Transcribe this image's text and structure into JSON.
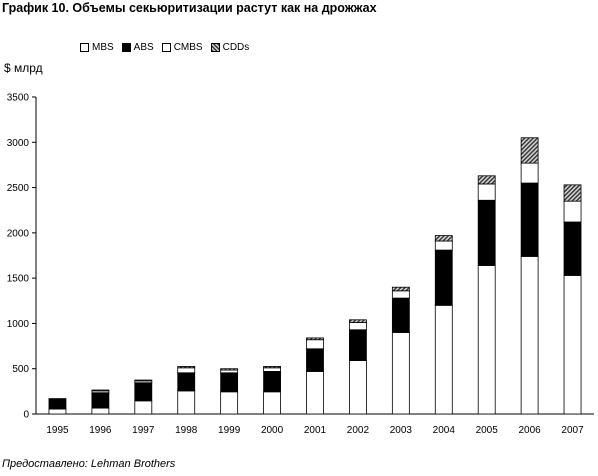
{
  "title": "График 10. Объемы секьюритизации растут как на дрожжах",
  "source": "Предоставлено: Lehman Brothers",
  "chart_data": {
    "type": "bar",
    "stacked": true,
    "ylabel": "$ млрд",
    "ylim": [
      0,
      3500
    ],
    "yticks": [
      0,
      500,
      1000,
      1500,
      2000,
      2500,
      3000,
      3500
    ],
    "grid": false,
    "legend_position": "top",
    "categories": [
      "1995",
      "1996",
      "1997",
      "1998",
      "1999",
      "2000",
      "2001",
      "2002",
      "2003",
      "2004",
      "2005",
      "2006",
      "2007"
    ],
    "series": [
      {
        "name": "MBS",
        "fill": "#ffffff",
        "values": [
          55,
          65,
          145,
          255,
          245,
          245,
          470,
          590,
          900,
          1200,
          1640,
          1740,
          1530
        ]
      },
      {
        "name": "ABS",
        "fill": "#000000",
        "values": [
          115,
          170,
          200,
          200,
          210,
          225,
          250,
          340,
          380,
          610,
          720,
          810,
          590
        ]
      },
      {
        "name": "CMBS",
        "fill": "#ffffff",
        "values": [
          0,
          20,
          20,
          55,
          30,
          40,
          100,
          80,
          80,
          100,
          180,
          220,
          230
        ]
      },
      {
        "name": "CDDs",
        "fill": "hatch",
        "values": [
          0,
          10,
          10,
          15,
          15,
          15,
          20,
          30,
          40,
          60,
          90,
          280,
          180
        ]
      }
    ]
  }
}
